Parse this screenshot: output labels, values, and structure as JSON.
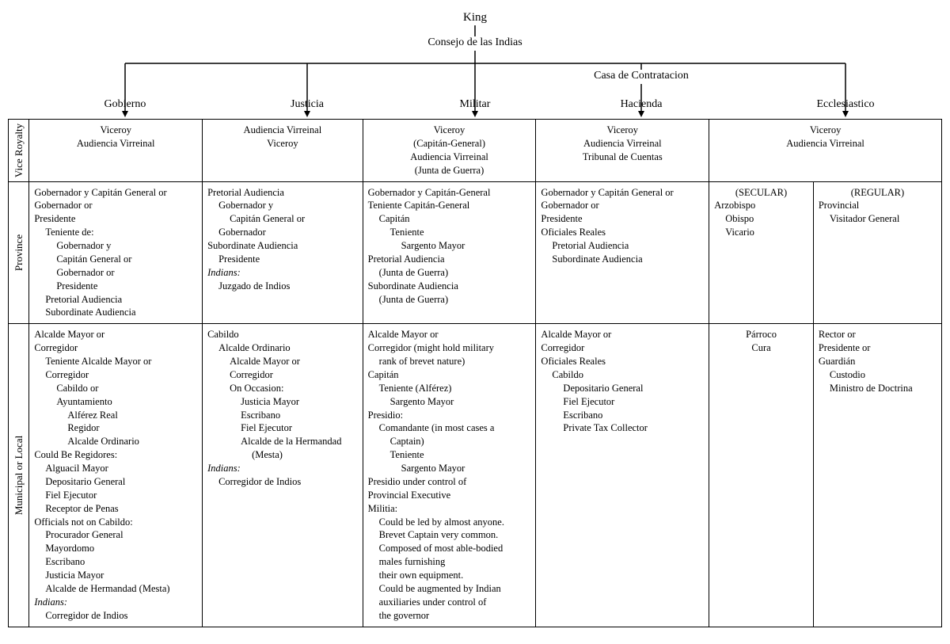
{
  "tree": {
    "king": "King",
    "consejo": "Consejo de las Indias",
    "casa": "Casa de Contratacion",
    "branches": {
      "gobierno": "Gobierno",
      "justicia": "Justicia",
      "militar": "Militar",
      "hacienda": "Hacienda",
      "ecclesiastico": "Ecclesiastico"
    }
  },
  "rowHeaders": {
    "vice": "Vice Royalty",
    "province": "Province",
    "municipal": "Municipal or Local"
  },
  "vice": {
    "gobierno": [
      "Viceroy",
      "Audiencia Virreinal"
    ],
    "justicia": [
      "Audiencia Virreinal",
      "Viceroy"
    ],
    "militar": [
      "Viceroy",
      "(Capitán-General)",
      "Audiencia Virreinal",
      "(Junta de Guerra)"
    ],
    "hacienda": [
      "Viceroy",
      "Audiencia Virreinal",
      "Tribunal de Cuentas"
    ],
    "ecclesiastico": [
      "Viceroy",
      "Audiencia Virreinal"
    ]
  },
  "province": {
    "gobierno": [
      {
        "t": "Gobernador y Capitán General or"
      },
      {
        "t": "Gobernador or"
      },
      {
        "t": "Presidente"
      },
      {
        "t": "Teniente de:",
        "i": 1
      },
      {
        "t": "Gobernador y",
        "i": 2
      },
      {
        "t": "Capitán General or",
        "i": 2
      },
      {
        "t": "Gobernador or",
        "i": 2
      },
      {
        "t": "Presidente",
        "i": 2
      },
      {
        "t": "Pretorial Audiencia",
        "i": 1
      },
      {
        "t": "Subordinate Audiencia",
        "i": 1
      }
    ],
    "justicia": [
      {
        "t": "Pretorial Audiencia"
      },
      {
        "t": "Gobernador y",
        "i": 1
      },
      {
        "t": "Capitán General or",
        "i": 2
      },
      {
        "t": "Gobernador",
        "i": 1
      },
      {
        "t": "Subordinate Audiencia"
      },
      {
        "t": "Presidente",
        "i": 1
      },
      {
        "t": "Indians:",
        "ital": true
      },
      {
        "t": "Juzgado de Indios",
        "i": 1
      }
    ],
    "militar": [
      {
        "t": "Gobernador y Capitán-General"
      },
      {
        "t": "Teniente Capitán-General"
      },
      {
        "t": "Capitán",
        "i": 1
      },
      {
        "t": "Teniente",
        "i": 2
      },
      {
        "t": "Sargento Mayor",
        "i": 3
      },
      {
        "t": "Pretorial Audiencia"
      },
      {
        "t": "(Junta de Guerra)",
        "i": 1
      },
      {
        "t": "Subordinate Audiencia"
      },
      {
        "t": "(Junta de Guerra)",
        "i": 1
      }
    ],
    "hacienda": [
      {
        "t": "Gobernador y Capitán General or"
      },
      {
        "t": "Gobernador or"
      },
      {
        "t": "Presidente"
      },
      {
        "t": "Oficiales Reales"
      },
      {
        "t": "Pretorial Audiencia",
        "i": 1
      },
      {
        "t": "Subordinate Audiencia",
        "i": 1
      }
    ],
    "eccl_secular_hdr": "(SECULAR)",
    "eccl_regular_hdr": "(REGULAR)",
    "eccl_secular": [
      {
        "t": "Arzobispo"
      },
      {
        "t": "Obispo",
        "i": 1
      },
      {
        "t": "Vicario",
        "i": 1
      }
    ],
    "eccl_regular": [
      {
        "t": "Provincial"
      },
      {
        "t": "Visitador General",
        "i": 1
      }
    ]
  },
  "municipal": {
    "gobierno": [
      {
        "t": "Alcalde Mayor or"
      },
      {
        "t": "Corregidor"
      },
      {
        "t": "Teniente Alcalde Mayor or",
        "i": 1
      },
      {
        "t": "Corregidor",
        "i": 1
      },
      {
        "t": "Cabildo or",
        "i": 2
      },
      {
        "t": "Ayuntamiento",
        "i": 2
      },
      {
        "t": "Alférez Real",
        "i": 3
      },
      {
        "t": "Regidor",
        "i": 3
      },
      {
        "t": "Alcalde Ordinario",
        "i": 3
      },
      {
        "t": "Could Be Regidores:"
      },
      {
        "t": "Alguacil Mayor",
        "i": 1
      },
      {
        "t": "Depositario General",
        "i": 1
      },
      {
        "t": "Fiel Ejecutor",
        "i": 1
      },
      {
        "t": "Receptor de Penas",
        "i": 1
      },
      {
        "t": "Officials not on Cabildo:"
      },
      {
        "t": "Procurador General",
        "i": 1
      },
      {
        "t": "Mayordomo",
        "i": 1
      },
      {
        "t": "Escribano",
        "i": 1
      },
      {
        "t": "Justicia Mayor",
        "i": 1
      },
      {
        "t": "Alcalde de Hermandad (Mesta)",
        "i": 1
      },
      {
        "t": "Indians:",
        "ital": true
      },
      {
        "t": "Corregidor de Indios",
        "i": 1
      }
    ],
    "justicia": [
      {
        "t": "Cabildo"
      },
      {
        "t": "Alcalde Ordinario",
        "i": 1
      },
      {
        "t": "Alcalde Mayor or",
        "i": 2
      },
      {
        "t": "Corregidor",
        "i": 2
      },
      {
        "t": "On Occasion:",
        "i": 2
      },
      {
        "t": "Justicia Mayor",
        "i": 3
      },
      {
        "t": "Escribano",
        "i": 3
      },
      {
        "t": "Fiel Ejecutor",
        "i": 3
      },
      {
        "t": "Alcalde de la Hermandad",
        "i": 3
      },
      {
        "t": "(Mesta)",
        "i": 4
      },
      {
        "t": "Indians:",
        "ital": true
      },
      {
        "t": "Corregidor de Indios",
        "i": 1
      }
    ],
    "militar": [
      {
        "t": "Alcalde Mayor or"
      },
      {
        "t": "Corregidor (might hold military"
      },
      {
        "t": "rank of brevet nature)",
        "i": 1
      },
      {
        "t": "Capitán"
      },
      {
        "t": "Teniente (Alférez)",
        "i": 1
      },
      {
        "t": "Sargento Mayor",
        "i": 2
      },
      {
        "t": "Presidio:"
      },
      {
        "t": "Comandante (in most cases a",
        "i": 1
      },
      {
        "t": "Captain)",
        "i": 2
      },
      {
        "t": "Teniente",
        "i": 2
      },
      {
        "t": "Sargento Mayor",
        "i": 3
      },
      {
        "t": "Presidio under control of"
      },
      {
        "t": "Provincial Executive"
      },
      {
        "t": "Militia:"
      },
      {
        "t": "Could be led by almost anyone.",
        "i": 1
      },
      {
        "t": "Brevet Captain very common.",
        "i": 1
      },
      {
        "t": "Composed of most able-bodied",
        "i": 1
      },
      {
        "t": "males furnishing",
        "i": 1
      },
      {
        "t": "their own equipment.",
        "i": 1
      },
      {
        "t": "Could be augmented by Indian",
        "i": 1
      },
      {
        "t": "auxiliaries under control of",
        "i": 1
      },
      {
        "t": "the governor",
        "i": 1
      }
    ],
    "hacienda": [
      {
        "t": "Alcalde Mayor or"
      },
      {
        "t": "Corregidor"
      },
      {
        "t": "Oficiales Reales"
      },
      {
        "t": "Cabildo",
        "i": 1
      },
      {
        "t": "Depositario General",
        "i": 2
      },
      {
        "t": "Fiel Ejecutor",
        "i": 2
      },
      {
        "t": "Escribano",
        "i": 2
      },
      {
        "t": "Private Tax Collector",
        "i": 2
      }
    ],
    "eccl_secular": [
      {
        "t": "Párroco",
        "center": true
      },
      {
        "t": " "
      },
      {
        "t": "Cura",
        "center": true
      }
    ],
    "eccl_regular": [
      {
        "t": "Rector or"
      },
      {
        "t": "Presidente or"
      },
      {
        "t": "Guardián"
      },
      {
        "t": "Custodio",
        "i": 1
      },
      {
        "t": "Ministro de Doctrina",
        "i": 1
      }
    ]
  },
  "layout": {
    "colX": {
      "gobierno": 148,
      "justicia": 378,
      "militar": 590,
      "hacienda": 800,
      "ecclesiastico": 1058
    },
    "colW": {
      "rowhdr": 26,
      "gobierno": 216,
      "justicia": 200,
      "militar": 216,
      "hacienda": 216,
      "eccl_sec": 130,
      "eccl_reg": 160
    }
  }
}
